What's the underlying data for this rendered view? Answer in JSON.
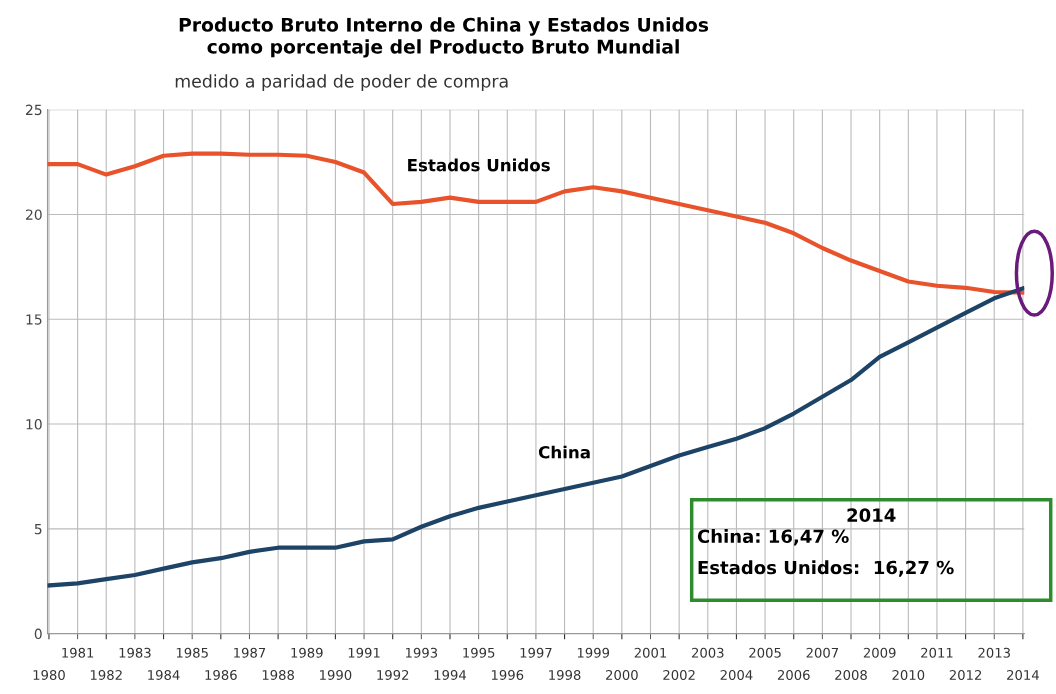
{
  "chart_data": {
    "type": "line",
    "title": "Producto Bruto Interno de China y Estados Unidos\ncomo porcentaje del Producto Bruto Mundial",
    "subtitle": "medido a paridad de poder de compra",
    "categories": [
      "1980",
      "1981",
      "1982",
      "1983",
      "1984",
      "1985",
      "1986",
      "1987",
      "1988",
      "1989",
      "1990",
      "1991",
      "1992",
      "1993",
      "1994",
      "1995",
      "1996",
      "1997",
      "1998",
      "1999",
      "2000",
      "2001",
      "2002",
      "2003",
      "2004",
      "2005",
      "2006",
      "2007",
      "2008",
      "2009",
      "2010",
      "2011",
      "2012",
      "2013",
      "2014"
    ],
    "series": [
      {
        "name": "Estados Unidos",
        "color": "#e8532b",
        "values": [
          22.4,
          22.4,
          21.9,
          22.3,
          22.8,
          22.9,
          22.9,
          22.85,
          22.85,
          22.8,
          22.5,
          22.0,
          20.5,
          20.6,
          20.8,
          20.6,
          20.6,
          20.6,
          21.1,
          21.3,
          21.1,
          20.8,
          20.5,
          20.2,
          19.9,
          19.6,
          19.1,
          18.4,
          17.8,
          17.3,
          16.8,
          16.6,
          16.5,
          16.3,
          16.27
        ]
      },
      {
        "name": "China",
        "color": "#1d4466",
        "values": [
          2.3,
          2.4,
          2.6,
          2.8,
          3.1,
          3.4,
          3.6,
          3.9,
          4.1,
          4.1,
          4.1,
          4.4,
          4.5,
          5.1,
          5.6,
          6.0,
          6.3,
          6.6,
          6.9,
          7.2,
          7.5,
          8.0,
          8.5,
          8.9,
          9.3,
          9.8,
          10.5,
          11.3,
          12.1,
          13.2,
          13.9,
          14.6,
          15.3,
          16.0,
          16.47
        ]
      }
    ],
    "ylim": [
      0,
      25
    ],
    "yticks": [
      0,
      5,
      10,
      15,
      20,
      25
    ],
    "grid": true,
    "marker": "none",
    "line_style": "solid",
    "legend": false,
    "annotations": [
      "2014",
      "China: 16,47 %",
      "Estados Unidos:  16,27 %"
    ]
  }
}
